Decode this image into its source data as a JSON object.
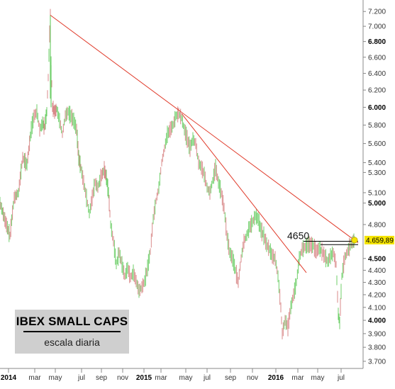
{
  "chart_data": {
    "type": "line",
    "title": "IBEX SMALL CAPS",
    "subtitle": "escala diaria",
    "x_tick_labels": [
      {
        "label": "2014",
        "bold": true
      },
      {
        "label": "mar",
        "bold": false
      },
      {
        "label": "may",
        "bold": false
      },
      {
        "label": "jul",
        "bold": false
      },
      {
        "label": "sep",
        "bold": false
      },
      {
        "label": "nov",
        "bold": false
      },
      {
        "label": "2015",
        "bold": true
      },
      {
        "label": "mar",
        "bold": false
      },
      {
        "label": "may",
        "bold": false
      },
      {
        "label": "jul",
        "bold": false
      },
      {
        "label": "sep",
        "bold": false
      },
      {
        "label": "nov",
        "bold": false
      },
      {
        "label": "2016",
        "bold": true
      },
      {
        "label": "mar",
        "bold": false
      },
      {
        "label": "may",
        "bold": false
      },
      {
        "label": "jul",
        "bold": false
      }
    ],
    "y_axis": {
      "scale": "log",
      "position": "right",
      "range": [
        3650,
        7300
      ],
      "ticks": [
        {
          "value": 7200,
          "label": "7.200",
          "bold": false
        },
        {
          "value": 7000,
          "label": "7.000",
          "bold": false
        },
        {
          "value": 6800,
          "label": "6.800",
          "bold": true
        },
        {
          "value": 6600,
          "label": "6.600",
          "bold": false
        },
        {
          "value": 6400,
          "label": "6.400",
          "bold": false
        },
        {
          "value": 6200,
          "label": "6.200",
          "bold": false
        },
        {
          "value": 6000,
          "label": "6.000",
          "bold": true
        },
        {
          "value": 5800,
          "label": "5.800",
          "bold": false
        },
        {
          "value": 5600,
          "label": "5.600",
          "bold": false
        },
        {
          "value": 5400,
          "label": "5.400",
          "bold": false
        },
        {
          "value": 5300,
          "label": "5.300",
          "bold": false
        },
        {
          "value": 5100,
          "label": "5.100",
          "bold": false
        },
        {
          "value": 5000,
          "label": "5.000",
          "bold": true
        },
        {
          "value": 4800,
          "label": "4.800",
          "bold": false
        },
        {
          "value": 4500,
          "label": "4.500",
          "bold": true
        },
        {
          "value": 4400,
          "label": "4.400",
          "bold": false
        },
        {
          "value": 4300,
          "label": "4.300",
          "bold": false
        },
        {
          "value": 4200,
          "label": "4.200",
          "bold": false
        },
        {
          "value": 4100,
          "label": "4.100",
          "bold": false
        },
        {
          "value": 4000,
          "label": "4.000",
          "bold": true
        },
        {
          "value": 3900,
          "label": "3.900",
          "bold": false
        },
        {
          "value": 3800,
          "label": "3.800",
          "bold": false
        },
        {
          "value": 3700,
          "label": "3.700",
          "bold": false
        }
      ]
    },
    "last_price": {
      "value": 4659.89,
      "label": "4.659,89",
      "color": "#f5e400"
    },
    "series": [
      {
        "values": [
          [
            0,
            5000
          ],
          [
            8,
            4820
          ],
          [
            14,
            4700
          ],
          [
            20,
            5050
          ],
          [
            26,
            5100
          ],
          [
            32,
            5450
          ],
          [
            38,
            5380
          ],
          [
            44,
            5750
          ],
          [
            48,
            5900
          ],
          [
            52,
            5950
          ],
          [
            56,
            5750
          ],
          [
            60,
            5820
          ],
          [
            63,
            5780
          ],
          [
            66,
            5950
          ],
          [
            68,
            6350
          ],
          [
            70,
            6900
          ],
          [
            71,
            7150
          ],
          [
            72,
            6550
          ],
          [
            74,
            6000
          ],
          [
            77,
            5950
          ],
          [
            80,
            5980
          ],
          [
            84,
            5850
          ],
          [
            88,
            5700
          ],
          [
            92,
            5900
          ],
          [
            96,
            5950
          ],
          [
            100,
            5900
          ],
          [
            104,
            5850
          ],
          [
            108,
            5750
          ],
          [
            111,
            5450
          ],
          [
            114,
            5350
          ],
          [
            118,
            5200
          ],
          [
            122,
            5050
          ],
          [
            126,
            4900
          ],
          [
            130,
            5050
          ],
          [
            134,
            5200
          ],
          [
            138,
            5150
          ],
          [
            142,
            5250
          ],
          [
            147,
            5330
          ],
          [
            150,
            5250
          ],
          [
            153,
            5100
          ],
          [
            156,
            4800
          ],
          [
            160,
            4650
          ],
          [
            164,
            4450
          ],
          [
            168,
            4550
          ],
          [
            172,
            4450
          ],
          [
            176,
            4350
          ],
          [
            180,
            4420
          ],
          [
            184,
            4340
          ],
          [
            188,
            4380
          ],
          [
            192,
            4310
          ],
          [
            196,
            4230
          ],
          [
            200,
            4260
          ],
          [
            204,
            4310
          ],
          [
            208,
            4420
          ],
          [
            212,
            4560
          ],
          [
            216,
            4850
          ],
          [
            220,
            5020
          ],
          [
            224,
            5150
          ],
          [
            228,
            5400
          ],
          [
            232,
            5550
          ],
          [
            236,
            5700
          ],
          [
            240,
            5750
          ],
          [
            244,
            5800
          ],
          [
            248,
            5900
          ],
          [
            252,
            5930
          ],
          [
            256,
            5880
          ],
          [
            260,
            5750
          ],
          [
            264,
            5650
          ],
          [
            268,
            5550
          ],
          [
            272,
            5650
          ],
          [
            276,
            5600
          ],
          [
            280,
            5400
          ],
          [
            284,
            5350
          ],
          [
            288,
            5280
          ],
          [
            292,
            5150
          ],
          [
            296,
            5100
          ],
          [
            300,
            5220
          ],
          [
            304,
            5350
          ],
          [
            308,
            5200
          ],
          [
            312,
            5100
          ],
          [
            316,
            4950
          ],
          [
            320,
            4700
          ],
          [
            324,
            4550
          ],
          [
            328,
            4500
          ],
          [
            332,
            4400
          ],
          [
            336,
            4300
          ],
          [
            340,
            4500
          ],
          [
            344,
            4650
          ],
          [
            348,
            4700
          ],
          [
            352,
            4780
          ],
          [
            356,
            4820
          ],
          [
            360,
            4880
          ],
          [
            364,
            4850
          ],
          [
            368,
            4750
          ],
          [
            372,
            4700
          ],
          [
            376,
            4620
          ],
          [
            380,
            4580
          ],
          [
            384,
            4520
          ],
          [
            388,
            4500
          ],
          [
            392,
            4350
          ],
          [
            396,
            4100
          ],
          [
            398,
            3900
          ],
          [
            402,
            4000
          ],
          [
            406,
            3950
          ],
          [
            410,
            4100
          ],
          [
            414,
            4200
          ],
          [
            418,
            4300
          ],
          [
            422,
            4500
          ],
          [
            426,
            4580
          ],
          [
            430,
            4600
          ],
          [
            434,
            4620
          ],
          [
            438,
            4620
          ],
          [
            442,
            4610
          ],
          [
            446,
            4560
          ],
          [
            450,
            4590
          ],
          [
            454,
            4560
          ],
          [
            458,
            4520
          ],
          [
            462,
            4470
          ],
          [
            466,
            4520
          ],
          [
            470,
            4550
          ],
          [
            474,
            4450
          ],
          [
            477,
            4050
          ],
          [
            479,
            3980
          ],
          [
            482,
            4350
          ],
          [
            486,
            4500
          ],
          [
            490,
            4560
          ],
          [
            494,
            4620
          ],
          [
            498,
            4650
          ],
          [
            500,
            4660
          ]
        ]
      }
    ],
    "trendlines": [
      {
        "from": [
          71,
          7150
        ],
        "to": [
          505,
          4635
        ],
        "color": "#e03a2a"
      },
      {
        "from": [
          256,
          5930
        ],
        "to": [
          432,
          4380
        ],
        "color": "#e03a2a"
      }
    ],
    "horizontal_lines": [
      {
        "value": 4650,
        "from_x": 428,
        "to_x": 505,
        "color": "#000000"
      },
      {
        "value": 4620,
        "from_x": 452,
        "to_x": 505,
        "color": "#000000"
      }
    ],
    "annotations": [
      {
        "text": "4650",
        "near_value": 4650
      }
    ]
  }
}
